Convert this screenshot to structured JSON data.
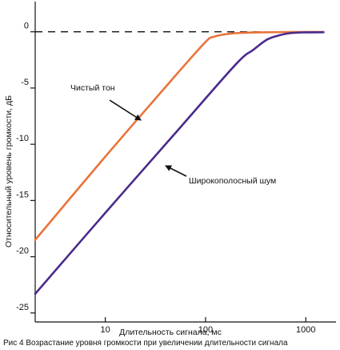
{
  "caption": "Рис 4 Возрастание уровня громкости при увеличении длительности сигнала",
  "chart_data": {
    "type": "line",
    "xlabel": "Длительность сигнала, мс",
    "ylabel": "Относительный уровень громкости, дБ",
    "x_scale": "log",
    "xlim": [
      2,
      2000
    ],
    "ylim": [
      -25.8,
      2.4
    ],
    "x_ticks": [
      10,
      100,
      1000
    ],
    "x_tick_labels": [
      "10",
      "100",
      "1000"
    ],
    "y_ticks": [
      0,
      -5,
      -10,
      -15,
      -20,
      -25
    ],
    "y_tick_labels": [
      "0",
      "-5",
      "-10",
      "-15",
      "-20",
      "-25"
    ],
    "reference_line": {
      "y": 0,
      "style": "dashed"
    },
    "grid": false,
    "series": [
      {
        "name": "Чистый тон",
        "color": "#e8743b",
        "x": [
          2,
          10,
          50,
          100,
          120,
          150,
          200,
          300,
          500,
          1000,
          1500
        ],
        "y": [
          -18.5,
          -11.1,
          -3.9,
          -0.9,
          -0.45,
          -0.25,
          -0.12,
          -0.06,
          -0.03,
          -0.02,
          -0.02
        ]
      },
      {
        "name": "Широкополосный шум",
        "color": "#4b2a8c",
        "x": [
          2,
          10,
          50,
          200,
          300,
          400,
          500,
          700,
          1000,
          1500
        ],
        "y": [
          -23.3,
          -16.1,
          -9.0,
          -2.9,
          -1.6,
          -0.75,
          -0.4,
          -0.12,
          -0.05,
          -0.04
        ]
      }
    ],
    "annotations": [
      {
        "text": "Чистый тон",
        "target_series": "Чистый тон"
      },
      {
        "text": "Широкополосный шум",
        "target_series": "Широкополосный шум"
      }
    ]
  }
}
